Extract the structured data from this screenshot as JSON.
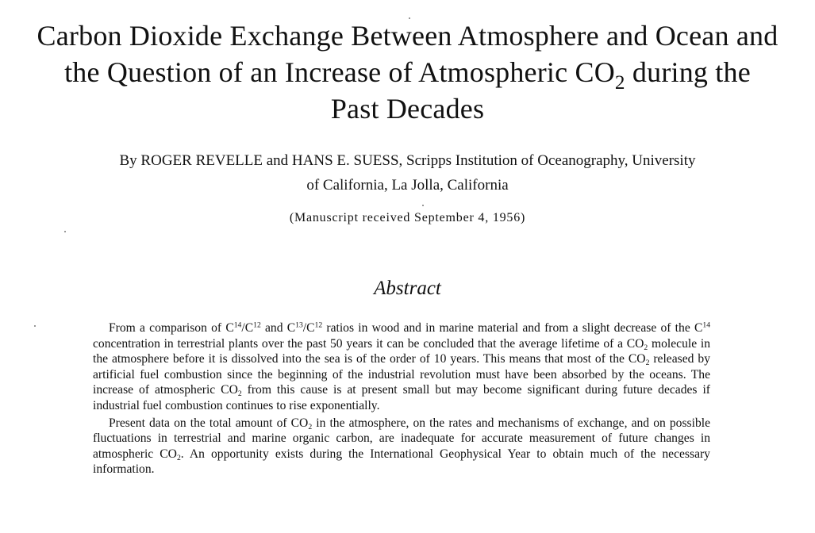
{
  "title": {
    "line1": "Carbon Dioxide Exchange Between Atmosphere and Ocean and",
    "line2_a": "the Question of an Increase of Atmospheric CO",
    "line2_sub": "2",
    "line2_b": " during the",
    "line3": "Past Decades"
  },
  "byline": {
    "line1": "By ROGER REVELLE and HANS E. SUESS, Scripps Institution of Oceanography, University",
    "line2": "of California, La Jolla, California"
  },
  "received": "(Manuscript received September 4, 1956)",
  "abstract": {
    "heading": "Abstract",
    "p1": {
      "s1": "From a comparison of C",
      "sup1": "14",
      "s2": "/C",
      "sup2": "12",
      "s3": " and C",
      "sup3": "13",
      "s4": "/C",
      "sup4": "12",
      "s5": " ratios in wood and in marine material and from a slight decrease of the C",
      "sup5": "14",
      "s6": " concentration in terrestrial plants over the past 50 years it can be concluded that the average lifetime of a CO",
      "sub1": "2",
      "s7": " molecule in the atmosphere before it is dissolved into the sea is of the order of 10 years. This means that most of the CO",
      "sub2": "2",
      "s8": " released by artificial fuel combustion since the beginning of the industrial revolution must have been absorbed by the oceans. The increase of atmospheric CO",
      "sub3": "2",
      "s9": " from this cause is at present small but may become significant during future decades if industrial fuel combustion continues to rise exponentially."
    },
    "p2": {
      "s1": "Present data on the total amount of CO",
      "sub1": "2",
      "s2": " in the atmosphere, on the rates and mechanisms of exchange, and on possible fluctuations in terrestrial and marine organic carbon, are inadequate for accurate measurement of future changes in atmospheric CO",
      "sub2": "2",
      "s3": ". An opportunity exists during the International Geophysical Year to obtain much of the necessary information."
    }
  }
}
